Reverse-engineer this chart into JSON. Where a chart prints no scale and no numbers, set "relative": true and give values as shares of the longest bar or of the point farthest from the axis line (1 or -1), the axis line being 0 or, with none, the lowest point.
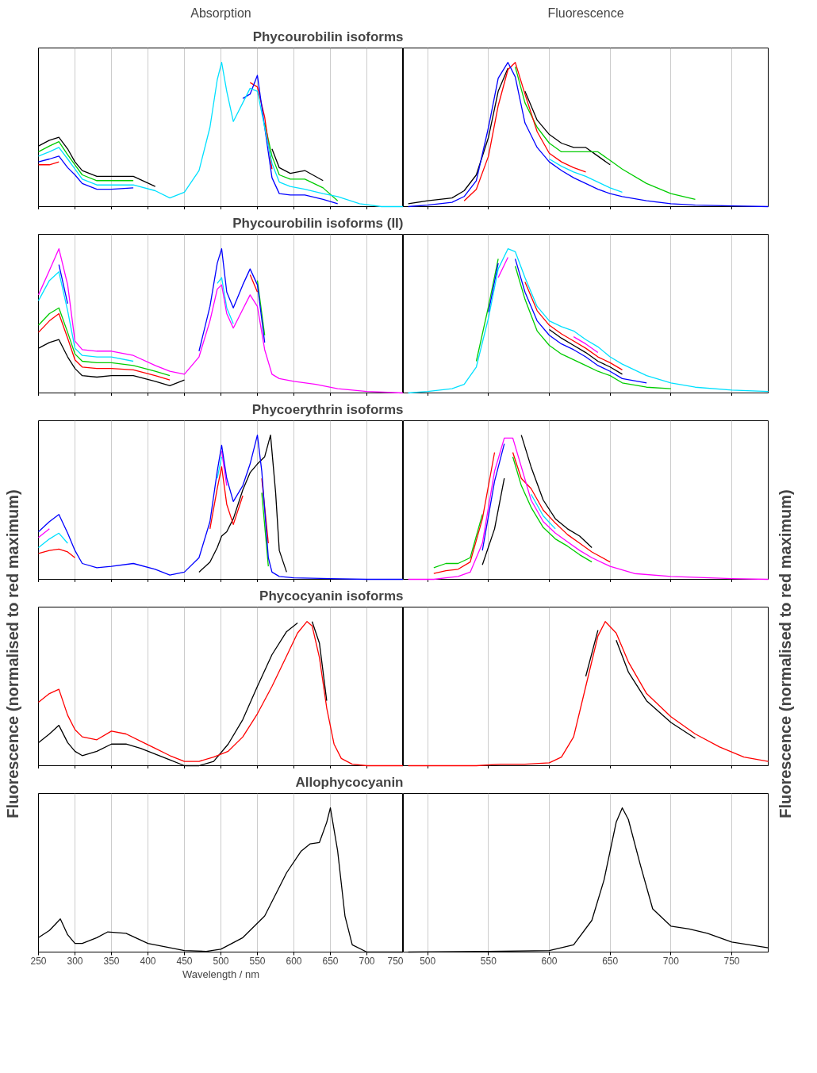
{
  "chart_data": [
    {
      "type": "line",
      "relative": true,
      "title": "Absorption",
      "subtitle": "Phycourobilin isoforms",
      "xlim": [
        250,
        750
      ],
      "xticks": [
        250,
        300,
        350,
        400,
        450,
        500,
        550,
        600,
        650,
        700,
        750
      ],
      "grid": "x",
      "tick_labels": false,
      "x": [
        250,
        265,
        278,
        290,
        300,
        310,
        330,
        350,
        380,
        410,
        430,
        450,
        470,
        485,
        495,
        501,
        508,
        517,
        530,
        540,
        550,
        560,
        570,
        580,
        595,
        615,
        640,
        660,
        690,
        720,
        750
      ],
      "series": [
        {
          "color": "#000000",
          "values": [
            0.42,
            0.46,
            0.48,
            0.4,
            0.31,
            0.25,
            0.21,
            0.21,
            0.21,
            0.14,
            null,
            null,
            null,
            null,
            null,
            null,
            null,
            null,
            null,
            null,
            null,
            null,
            0.4,
            0.27,
            0.23,
            0.25,
            0.18,
            null,
            null,
            null,
            null
          ]
        },
        {
          "color": "#00cc00",
          "values": [
            0.38,
            0.42,
            0.45,
            0.36,
            0.29,
            0.22,
            0.18,
            0.18,
            0.18,
            null,
            null,
            null,
            null,
            null,
            null,
            null,
            null,
            null,
            null,
            null,
            null,
            0.58,
            0.35,
            0.22,
            0.19,
            0.19,
            0.13,
            0.04,
            null,
            null,
            null
          ]
        },
        {
          "color": "#ff0000",
          "values": [
            0.29,
            0.29,
            0.31,
            null,
            null,
            null,
            null,
            null,
            null,
            null,
            null,
            null,
            null,
            null,
            null,
            null,
            null,
            null,
            null,
            0.86,
            0.83,
            0.62,
            0.26,
            null,
            null,
            null,
            null,
            null,
            null,
            null,
            null
          ]
        },
        {
          "color": "#0000ff",
          "values": [
            0.31,
            0.33,
            0.35,
            0.27,
            0.22,
            0.16,
            0.12,
            0.12,
            0.13,
            null,
            null,
            null,
            null,
            null,
            null,
            null,
            null,
            null,
            0.75,
            0.78,
            0.91,
            0.55,
            0.2,
            0.09,
            0.08,
            0.08,
            0.05,
            0.02,
            null,
            null,
            null
          ]
        },
        {
          "color": "#00e0ff",
          "values": [
            0.35,
            0.38,
            0.41,
            0.33,
            0.26,
            0.19,
            0.15,
            0.15,
            0.15,
            0.11,
            0.06,
            0.1,
            0.25,
            0.55,
            0.88,
            1.0,
            0.8,
            0.59,
            0.72,
            0.82,
            0.8,
            0.55,
            0.3,
            0.17,
            0.14,
            0.12,
            0.09,
            0.07,
            0.02,
            0.0,
            0.0
          ]
        }
      ]
    },
    {
      "type": "line",
      "relative": true,
      "title": "Fluorescence",
      "xlim": [
        480,
        780
      ],
      "xticks": [
        500,
        550,
        600,
        650,
        700,
        750
      ],
      "grid": "x",
      "tick_labels": false,
      "x": [
        484,
        500,
        520,
        530,
        540,
        550,
        558,
        566,
        572,
        580,
        590,
        600,
        610,
        620,
        630,
        640,
        650,
        660,
        680,
        700,
        720,
        750,
        780
      ],
      "series": [
        {
          "color": "#000000",
          "values": [
            0.02,
            0.04,
            0.06,
            0.11,
            0.22,
            0.48,
            0.8,
            0.96,
            null,
            0.8,
            0.6,
            0.5,
            0.44,
            0.41,
            0.41,
            0.35,
            0.29,
            null,
            null,
            null,
            null,
            null,
            null
          ]
        },
        {
          "color": "#00cc00",
          "values": [
            null,
            null,
            null,
            null,
            null,
            null,
            null,
            null,
            0.97,
            0.72,
            0.55,
            0.44,
            0.38,
            0.38,
            0.38,
            0.38,
            0.32,
            0.26,
            0.16,
            0.09,
            0.05,
            null,
            null
          ]
        },
        {
          "color": "#ff0000",
          "values": [
            null,
            null,
            null,
            0.04,
            0.12,
            0.35,
            0.7,
            0.95,
            1.0,
            0.78,
            0.52,
            0.37,
            0.31,
            0.27,
            0.24,
            null,
            null,
            null,
            null,
            null,
            null,
            null,
            null
          ]
        },
        {
          "color": "#00e0ff",
          "values": [
            null,
            null,
            null,
            null,
            null,
            null,
            null,
            null,
            null,
            null,
            null,
            0.33,
            0.28,
            0.24,
            0.21,
            0.17,
            0.13,
            0.1,
            null,
            null,
            null,
            null,
            null
          ]
        },
        {
          "color": "#0000ff",
          "values": [
            0,
            0.01,
            0.03,
            0.07,
            0.18,
            0.55,
            0.89,
            1.0,
            0.9,
            0.58,
            0.41,
            0.31,
            0.25,
            0.2,
            0.16,
            0.12,
            0.09,
            0.07,
            0.04,
            0.02,
            0.01,
            0.005,
            0
          ]
        }
      ]
    },
    {
      "type": "line",
      "relative": true,
      "subtitle": "Phycourobilin isoforms (II)",
      "xlim": [
        250,
        750
      ],
      "xticks": [
        250,
        300,
        350,
        400,
        450,
        500,
        550,
        600,
        650,
        700,
        750
      ],
      "grid": "x",
      "tick_labels": false,
      "x": [
        250,
        265,
        278,
        290,
        300,
        310,
        330,
        350,
        380,
        410,
        430,
        450,
        470,
        485,
        495,
        501,
        508,
        517,
        530,
        540,
        550,
        560,
        570,
        580,
        600,
        630,
        660,
        700,
        750
      ],
      "series": [
        {
          "color": "#000000",
          "values": [
            0.31,
            0.35,
            0.37,
            0.25,
            0.17,
            0.12,
            0.11,
            0.12,
            0.12,
            0.08,
            0.05,
            0.09,
            null,
            null,
            null,
            null,
            null,
            null,
            null,
            null,
            null,
            null,
            null,
            null,
            null,
            null,
            null,
            null,
            null
          ]
        },
        {
          "color": "#ff0000",
          "values": [
            0.42,
            0.5,
            0.55,
            0.38,
            0.23,
            0.18,
            0.17,
            0.17,
            0.16,
            0.12,
            0.09,
            null,
            null,
            null,
            null,
            null,
            null,
            null,
            null,
            0.82,
            0.7,
            null,
            null,
            null,
            null,
            null,
            null,
            null,
            null
          ]
        },
        {
          "color": "#00cc00",
          "values": [
            0.47,
            0.55,
            0.59,
            0.42,
            0.27,
            0.22,
            0.21,
            0.21,
            0.19,
            0.15,
            0.12,
            null,
            null,
            null,
            null,
            null,
            null,
            null,
            null,
            null,
            0.78,
            0.4,
            null,
            null,
            null,
            null,
            null,
            null,
            null
          ]
        },
        {
          "color": "#0000ff",
          "values": [
            null,
            null,
            0.89,
            0.62,
            null,
            null,
            null,
            null,
            null,
            null,
            null,
            null,
            0.29,
            0.6,
            0.9,
            1.0,
            0.7,
            0.59,
            0.75,
            0.86,
            0.75,
            0.35,
            null,
            null,
            null,
            null,
            null,
            null,
            null
          ]
        },
        {
          "color": "#00e0ff",
          "values": [
            0.64,
            0.78,
            0.84,
            0.57,
            0.31,
            0.26,
            0.25,
            0.25,
            0.22,
            null,
            null,
            null,
            null,
            null,
            0.76,
            0.8,
            0.59,
            0.48,
            null,
            null,
            null,
            null,
            null,
            null,
            null,
            null,
            null,
            null,
            null
          ]
        },
        {
          "color": "#ff00ff",
          "values": [
            0.68,
            0.85,
            1.0,
            0.75,
            0.36,
            0.3,
            0.29,
            0.29,
            0.26,
            0.19,
            0.15,
            0.13,
            0.25,
            0.5,
            0.72,
            0.75,
            0.55,
            0.45,
            0.58,
            0.68,
            0.6,
            0.3,
            0.13,
            0.1,
            0.08,
            0.06,
            0.03,
            0.01,
            0
          ]
        }
      ]
    },
    {
      "type": "line",
      "relative": true,
      "xlim": [
        480,
        780
      ],
      "xticks": [
        500,
        550,
        600,
        650,
        700,
        750
      ],
      "grid": "x",
      "tick_labels": false,
      "x": [
        484,
        500,
        520,
        530,
        540,
        550,
        558,
        566,
        572,
        580,
        590,
        600,
        610,
        620,
        630,
        640,
        650,
        660,
        680,
        700,
        720,
        750,
        780
      ],
      "series": [
        {
          "color": "#00cc00",
          "values": [
            null,
            null,
            null,
            null,
            0.22,
            0.6,
            0.93,
            null,
            0.88,
            0.65,
            0.43,
            0.33,
            0.27,
            0.23,
            0.19,
            0.15,
            0.12,
            0.07,
            0.04,
            0.03,
            null,
            null,
            null
          ]
        },
        {
          "color": "#0000ff",
          "values": [
            null,
            null,
            null,
            null,
            null,
            0.56,
            0.9,
            null,
            0.93,
            0.7,
            0.5,
            0.4,
            0.34,
            0.3,
            0.25,
            0.19,
            0.15,
            0.1,
            0.07,
            null,
            null,
            null,
            null
          ]
        },
        {
          "color": "#000000",
          "values": [
            null,
            null,
            null,
            null,
            null,
            null,
            null,
            null,
            null,
            null,
            null,
            0.44,
            0.38,
            0.33,
            0.28,
            0.22,
            0.18,
            0.13,
            null,
            null,
            null,
            null,
            null
          ]
        },
        {
          "color": "#ff0000",
          "values": [
            null,
            null,
            null,
            null,
            null,
            null,
            null,
            null,
            null,
            0.77,
            0.57,
            0.47,
            0.41,
            0.36,
            0.31,
            0.25,
            0.21,
            0.16,
            null,
            null,
            null,
            null,
            null
          ]
        },
        {
          "color": "#ff00ff",
          "values": [
            null,
            null,
            null,
            null,
            null,
            null,
            0.8,
            0.94,
            null,
            null,
            null,
            null,
            null,
            0.39,
            0.34,
            0.28,
            null,
            null,
            null,
            null,
            null,
            null,
            null
          ]
        },
        {
          "color": "#00e0ff",
          "values": [
            0,
            0.01,
            0.03,
            0.06,
            0.18,
            0.52,
            0.86,
            1.0,
            0.98,
            0.8,
            0.6,
            0.5,
            0.46,
            0.43,
            0.37,
            0.32,
            0.25,
            0.2,
            0.12,
            0.07,
            0.04,
            0.02,
            0.01
          ]
        }
      ]
    },
    {
      "type": "line",
      "relative": true,
      "subtitle": "Phycoerythrin isoforms",
      "ylabel": "Fluorescence (normalised to red maximum)",
      "xlim": [
        250,
        750
      ],
      "xticks": [
        250,
        300,
        350,
        400,
        450,
        500,
        550,
        600,
        650,
        700,
        750
      ],
      "grid": "x",
      "tick_labels": false,
      "x": [
        250,
        265,
        278,
        290,
        300,
        310,
        330,
        350,
        380,
        410,
        430,
        450,
        470,
        485,
        495,
        501,
        508,
        517,
        530,
        540,
        550,
        556,
        565,
        570,
        580,
        600,
        650,
        700,
        750
      ],
      "series": [
        {
          "color": "#000000",
          "x": [
            470,
            485,
            495,
            501,
            508,
            517,
            530,
            540,
            550,
            560,
            568,
            575,
            580,
            590
          ],
          "values": [
            0.05,
            0.12,
            0.22,
            0.3,
            0.33,
            0.42,
            0.62,
            0.74,
            0.8,
            0.85,
            1.0,
            0.6,
            0.2,
            0.05
          ]
        },
        {
          "color": "#00cc00",
          "values": [
            null,
            null,
            null,
            null,
            null,
            null,
            null,
            null,
            null,
            null,
            null,
            null,
            null,
            null,
            null,
            null,
            null,
            null,
            null,
            null,
            null,
            0.6,
            0.09,
            null,
            null,
            null,
            null,
            null,
            null
          ]
        },
        {
          "color": "#ff0000",
          "values": [
            0.18,
            0.2,
            0.21,
            0.19,
            0.15,
            null,
            null,
            null,
            null,
            null,
            null,
            null,
            null,
            0.35,
            0.63,
            0.78,
            0.52,
            0.38,
            0.58,
            null,
            null,
            0.7,
            0.25,
            null,
            null,
            null,
            null,
            null,
            null
          ]
        },
        {
          "color": "#00e0ff",
          "values": [
            0.22,
            0.28,
            0.32,
            0.25,
            null,
            null,
            null,
            null,
            null,
            null,
            null,
            null,
            null,
            null,
            0.7,
            0.85,
            null,
            null,
            null,
            null,
            null,
            null,
            null,
            null,
            null,
            null,
            null,
            null,
            null
          ]
        },
        {
          "color": "#ff00ff",
          "values": [
            0.29,
            0.35,
            null,
            null,
            null,
            null,
            null,
            null,
            null,
            null,
            null,
            null,
            null,
            null,
            null,
            0.89,
            0.65,
            null,
            null,
            null,
            null,
            null,
            null,
            null,
            null,
            null,
            null,
            null,
            null
          ]
        },
        {
          "color": "#0000ff",
          "values": [
            0.33,
            0.4,
            0.45,
            0.32,
            0.2,
            0.11,
            0.08,
            0.09,
            0.11,
            0.07,
            0.03,
            0.05,
            0.15,
            0.4,
            0.75,
            0.93,
            0.7,
            0.54,
            0.65,
            0.8,
            1.0,
            0.75,
            0.15,
            0.05,
            0.02,
            0.01,
            0.005,
            0,
            0
          ]
        }
      ]
    },
    {
      "type": "line",
      "relative": true,
      "y2label": "Fluorescence (normalised to red maximum)",
      "xlim": [
        480,
        780
      ],
      "xticks": [
        500,
        550,
        600,
        650,
        700,
        750
      ],
      "grid": "x",
      "tick_labels": false,
      "x": [
        484,
        500,
        505,
        515,
        525,
        535,
        545,
        555,
        563,
        570,
        577,
        585,
        595,
        605,
        615,
        625,
        635,
        650,
        670,
        700,
        750,
        780
      ],
      "series": [
        {
          "color": "#000000",
          "values": [
            null,
            null,
            null,
            null,
            null,
            null,
            0.1,
            0.35,
            0.7,
            null,
            1.0,
            0.78,
            0.55,
            0.42,
            0.35,
            0.3,
            0.22,
            null,
            null,
            null,
            null,
            null
          ]
        },
        {
          "color": "#00cc00",
          "values": [
            null,
            null,
            0.08,
            0.11,
            0.11,
            0.15,
            0.45,
            null,
            null,
            0.85,
            0.65,
            0.5,
            0.36,
            0.28,
            0.23,
            0.17,
            0.12,
            null,
            null,
            null,
            null,
            null
          ]
        },
        {
          "color": "#ff0000",
          "values": [
            null,
            null,
            0.04,
            0.06,
            0.07,
            0.12,
            0.42,
            0.88,
            null,
            0.88,
            0.7,
            0.63,
            0.48,
            0.39,
            0.31,
            0.25,
            0.19,
            0.12,
            null,
            null,
            null,
            null
          ]
        },
        {
          "color": "#00e0ff",
          "values": [
            null,
            null,
            null,
            null,
            null,
            null,
            null,
            null,
            null,
            null,
            null,
            0.59,
            0.44,
            0.35,
            null,
            null,
            null,
            null,
            null,
            null,
            null,
            null
          ]
        },
        {
          "color": "#0000ff",
          "values": [
            null,
            null,
            null,
            null,
            null,
            null,
            0.2,
            0.68,
            0.94,
            null,
            null,
            null,
            null,
            null,
            null,
            null,
            null,
            null,
            null,
            null,
            null,
            null
          ]
        },
        {
          "color": "#ff00ff",
          "values": [
            0,
            0,
            0,
            0.01,
            0.02,
            0.05,
            0.25,
            0.75,
            0.98,
            0.98,
            0.78,
            0.55,
            0.4,
            0.32,
            0.26,
            0.2,
            0.15,
            0.09,
            0.04,
            0.02,
            0.005,
            0
          ]
        }
      ]
    },
    {
      "type": "line",
      "relative": true,
      "subtitle": "Phycocyanin isoforms",
      "xlim": [
        250,
        750
      ],
      "xticks": [
        250,
        300,
        350,
        400,
        450,
        500,
        550,
        600,
        650,
        700,
        750
      ],
      "grid": "x",
      "tick_labels": false,
      "x": [
        250,
        265,
        278,
        290,
        300,
        310,
        330,
        350,
        370,
        390,
        410,
        430,
        450,
        470,
        490,
        510,
        530,
        550,
        570,
        590,
        605,
        618,
        625,
        635,
        645,
        655,
        665,
        680,
        700,
        750
      ],
      "series": [
        {
          "color": "#000000",
          "values": [
            0.16,
            0.22,
            0.28,
            0.16,
            0.1,
            0.07,
            0.1,
            0.15,
            0.15,
            0.12,
            0.08,
            0.04,
            0.0,
            0.0,
            0.03,
            0.15,
            0.32,
            0.55,
            0.77,
            0.93,
            0.99,
            null,
            1.0,
            0.85,
            0.45,
            null,
            null,
            null,
            null,
            null
          ]
        },
        {
          "color": "#ff0000",
          "values": [
            0.44,
            0.5,
            0.53,
            0.35,
            0.25,
            0.2,
            0.18,
            0.24,
            0.22,
            0.17,
            0.12,
            0.07,
            0.03,
            0.03,
            0.06,
            0.1,
            0.2,
            0.36,
            0.55,
            0.76,
            0.92,
            1.0,
            0.97,
            0.75,
            0.4,
            0.15,
            0.05,
            0.01,
            0,
            0
          ]
        }
      ]
    },
    {
      "type": "line",
      "relative": true,
      "xlim": [
        480,
        780
      ],
      "xticks": [
        500,
        550,
        600,
        650,
        700,
        750
      ],
      "grid": "x",
      "tick_labels": false,
      "x": [
        484,
        500,
        540,
        560,
        580,
        600,
        610,
        620,
        630,
        640,
        646,
        655,
        665,
        680,
        700,
        720,
        740,
        760,
        780
      ],
      "series": [
        {
          "color": "#000000",
          "values": [
            null,
            null,
            null,
            null,
            null,
            null,
            null,
            null,
            0.62,
            0.94,
            null,
            0.87,
            0.65,
            0.45,
            0.3,
            0.19,
            null,
            null,
            null
          ]
        },
        {
          "color": "#ff0000",
          "values": [
            0,
            0,
            0,
            0.01,
            0.01,
            0.02,
            0.06,
            0.2,
            0.55,
            0.9,
            1.0,
            0.92,
            0.72,
            0.5,
            0.34,
            0.22,
            0.13,
            0.06,
            0.03
          ]
        }
      ]
    },
    {
      "type": "line",
      "relative": true,
      "subtitle": "Allophycocyanin",
      "xlabel": "Wavelength / nm",
      "xlim": [
        250,
        750
      ],
      "xticks": [
        250,
        300,
        350,
        400,
        450,
        500,
        550,
        600,
        650,
        700,
        750
      ],
      "grid": "x",
      "tick_labels": "x",
      "x": [
        250,
        265,
        280,
        290,
        300,
        310,
        330,
        345,
        370,
        400,
        450,
        480,
        500,
        530,
        560,
        590,
        610,
        622,
        635,
        645,
        650,
        660,
        670,
        680,
        700,
        750
      ],
      "series": [
        {
          "color": "#000000",
          "values": [
            0.1,
            0.15,
            0.23,
            0.12,
            0.06,
            0.06,
            0.1,
            0.14,
            0.13,
            0.06,
            0.01,
            0.005,
            0.02,
            0.1,
            0.25,
            0.55,
            0.7,
            0.75,
            0.76,
            0.9,
            1.0,
            0.7,
            0.25,
            0.05,
            0,
            0
          ]
        }
      ]
    },
    {
      "type": "line",
      "relative": true,
      "xlim": [
        480,
        780
      ],
      "xticks": [
        500,
        550,
        600,
        650,
        700,
        750
      ],
      "grid": "x",
      "tick_labels": "x",
      "x": [
        484,
        550,
        600,
        620,
        635,
        645,
        655,
        660,
        665,
        675,
        685,
        700,
        715,
        730,
        750,
        780
      ],
      "series": [
        {
          "color": "#000000",
          "values": [
            0,
            0.005,
            0.01,
            0.05,
            0.22,
            0.5,
            0.9,
            1.0,
            0.92,
            0.6,
            0.3,
            0.18,
            0.16,
            0.13,
            0.07,
            0.03
          ]
        }
      ]
    }
  ]
}
